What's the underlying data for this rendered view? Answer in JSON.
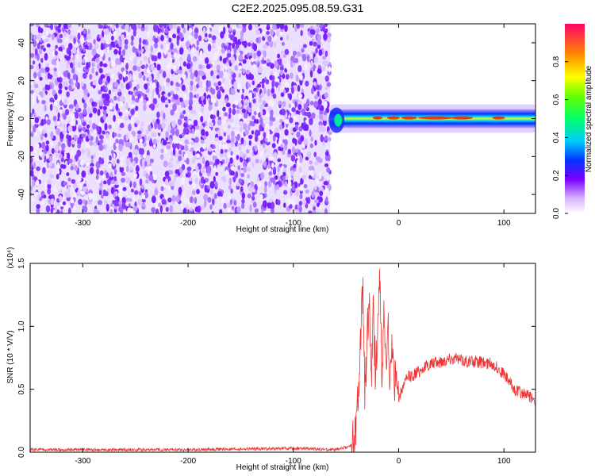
{
  "title": "C2E2.2025.095.08.59.G31",
  "colors": {
    "snr_line": "#ee3333",
    "spectral_lowest": "#8a2be2",
    "frame": "#000000"
  },
  "chart_data": [
    {
      "type": "heatmap",
      "xlabel": "Height of straight line (km)",
      "ylabel": "Frequency (Hz)",
      "xlim": [
        -350,
        130
      ],
      "ylim": [
        -50,
        50
      ],
      "xticks": [
        -300,
        -200,
        -100,
        0,
        100
      ],
      "yticks": [
        -40,
        -20,
        0,
        20,
        40
      ],
      "colorbar": {
        "label": "Normalized spectral amplitude",
        "range": [
          0,
          1
        ],
        "ticks": [
          "0.0",
          "0.2",
          "0.4",
          "0.6",
          "0.8"
        ],
        "colormap": "rainbow: white - violet - blue - cyan - green - yellow - orange - red"
      },
      "regions": [
        {
          "x": [
            -350,
            -65
          ],
          "y": [
            -50,
            50
          ],
          "amplitude": "0.0-0.15",
          "pattern": "scattered noise"
        },
        {
          "x": [
            -65,
            130
          ],
          "y": [
            -5,
            5
          ],
          "amplitude": "up to 1.0",
          "pattern": "narrow band near 0-2 Hz"
        }
      ]
    },
    {
      "type": "line",
      "xlabel": "Height of straight line (km)",
      "ylabel": "SNR (10 * V/V)",
      "y_multiplier": "(x10⁴)",
      "xlim": [
        -350,
        130
      ],
      "ylim": [
        0,
        1.5
      ],
      "xticks": [
        -300,
        -200,
        -100,
        0,
        100
      ],
      "yticks": [
        "0.0",
        "0.5",
        "1.0",
        "1.5"
      ],
      "series": [
        {
          "x": [
            -350,
            -300,
            -200,
            -100,
            -60,
            -45,
            -40,
            -38,
            -36,
            -34,
            -32,
            -30,
            -28,
            -26,
            -24,
            -22,
            -20,
            -18,
            -16,
            -14,
            -12,
            -10,
            -8,
            -6,
            -4,
            -2,
            0,
            5,
            10,
            15,
            20,
            30,
            40,
            50,
            60,
            70,
            80,
            90,
            100,
            110,
            120,
            130
          ],
          "y": [
            0.02,
            0.02,
            0.02,
            0.03,
            0.02,
            0.05,
            0.2,
            0.5,
            0.9,
            1.3,
            0.4,
            0.9,
            1.25,
            0.5,
            1.15,
            0.6,
            1.0,
            1.5,
            0.5,
            1.2,
            0.6,
            1.0,
            0.55,
            0.9,
            0.5,
            0.7,
            0.4,
            0.55,
            0.6,
            0.62,
            0.65,
            0.7,
            0.72,
            0.75,
            0.73,
            0.72,
            0.71,
            0.7,
            0.62,
            0.5,
            0.46,
            0.42
          ]
        }
      ]
    }
  ]
}
